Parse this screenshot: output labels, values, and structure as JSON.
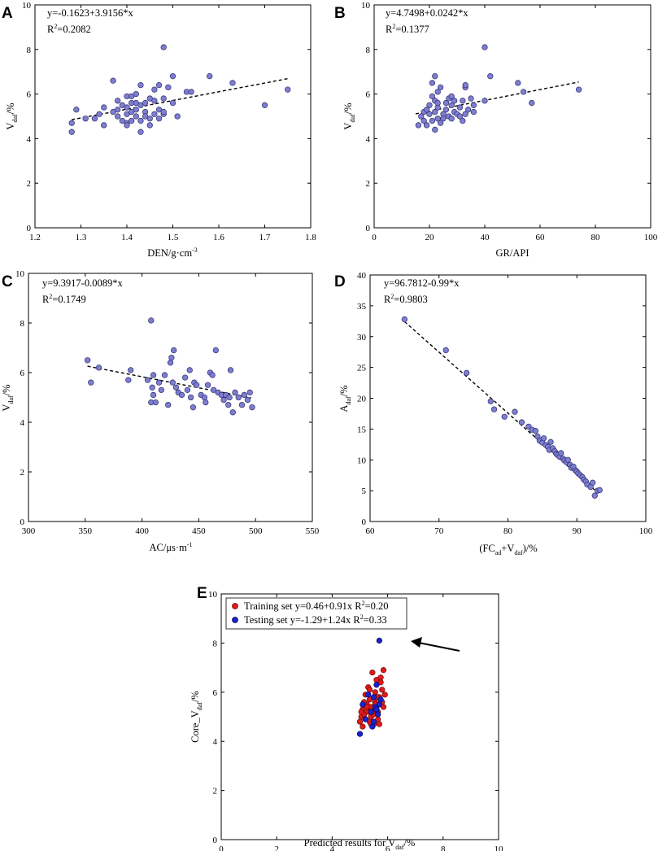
{
  "figure": {
    "colors": {
      "point_fill": "#7e7ed0",
      "point_stroke": "#2e2e6e",
      "training": "#e01b1b",
      "testing": "#1a22c8",
      "trend": "#000000"
    }
  },
  "chart_data": [
    {
      "panel": "A",
      "type": "scatter",
      "xlabel": "DEN/g·cm",
      "xlabel_sup": "-3",
      "ylabel": "V",
      "ylabel_sub": "daf",
      "ylabel_tail": "/%",
      "xlim": [
        1.2,
        1.8
      ],
      "ylim": [
        0,
        10
      ],
      "xticks": [
        "1.2",
        "1.3",
        "1.4",
        "1.5",
        "1.6",
        "1.7",
        "1.8"
      ],
      "yticks": [
        "0",
        "2",
        "4",
        "6",
        "8",
        "10"
      ],
      "equation": "y=-0.1623+3.9156*x",
      "r2_label": "R",
      "r2_sup": "2",
      "r2_value": "=0.2082",
      "trend": [
        [
          1.28,
          4.85
        ],
        [
          1.75,
          6.69
        ]
      ],
      "x": [
        1.28,
        1.28,
        1.29,
        1.31,
        1.33,
        1.34,
        1.35,
        1.35,
        1.37,
        1.37,
        1.38,
        1.38,
        1.38,
        1.39,
        1.39,
        1.4,
        1.4,
        1.4,
        1.4,
        1.4,
        1.41,
        1.41,
        1.41,
        1.41,
        1.42,
        1.42,
        1.42,
        1.42,
        1.43,
        1.43,
        1.43,
        1.43,
        1.44,
        1.44,
        1.44,
        1.45,
        1.45,
        1.45,
        1.46,
        1.46,
        1.46,
        1.47,
        1.47,
        1.47,
        1.48,
        1.48,
        1.48,
        1.48,
        1.49,
        1.5,
        1.5,
        1.51,
        1.53,
        1.54,
        1.58,
        1.63,
        1.7,
        1.75
      ],
      "y": [
        4.3,
        4.7,
        5.3,
        4.9,
        4.9,
        5.1,
        4.6,
        5.4,
        5.2,
        6.6,
        5.0,
        5.3,
        5.7,
        5.5,
        4.8,
        5.1,
        5.4,
        4.7,
        4.6,
        5.9,
        5.2,
        5.6,
        5.9,
        4.8,
        5.0,
        5.6,
        6.0,
        5.3,
        4.3,
        5.5,
        4.8,
        6.4,
        5.2,
        5.6,
        5.0,
        5.8,
        4.6,
        4.9,
        6.2,
        5.1,
        5.7,
        6.4,
        5.3,
        4.9,
        8.1,
        5.8,
        5.1,
        5.2,
        6.3,
        6.8,
        5.6,
        5.0,
        6.1,
        6.1,
        6.8,
        6.5,
        5.5,
        6.2
      ]
    },
    {
      "panel": "B",
      "type": "scatter",
      "xlabel": "GR/API",
      "ylabel": "V",
      "ylabel_sub": "daf",
      "ylabel_tail": "/%",
      "xlim": [
        0,
        100
      ],
      "ylim": [
        0,
        10
      ],
      "xticks": [
        "0",
        "20",
        "40",
        "60",
        "80",
        "100"
      ],
      "yticks": [
        "0",
        "2",
        "4",
        "6",
        "8",
        "10"
      ],
      "equation": "y=4.7498+0.0242*x",
      "r2_label": "R",
      "r2_sup": "2",
      "r2_value": "=0.1377",
      "trend": [
        [
          15,
          5.11
        ],
        [
          74,
          6.54
        ]
      ],
      "x": [
        16,
        17,
        18,
        18,
        19,
        19,
        20,
        20,
        21,
        21,
        21,
        22,
        22,
        22,
        22,
        23,
        23,
        23,
        23,
        24,
        24,
        25,
        25,
        26,
        26,
        27,
        27,
        28,
        28,
        28,
        29,
        29,
        30,
        31,
        31,
        32,
        32,
        33,
        33,
        33,
        34,
        35,
        36,
        36,
        40,
        40,
        42,
        52,
        54,
        57,
        74
      ],
      "y": [
        4.6,
        5.0,
        4.8,
        5.2,
        4.6,
        5.3,
        5.1,
        5.5,
        4.8,
        5.9,
        6.5,
        6.8,
        5.2,
        4.4,
        5.7,
        6.1,
        4.9,
        5.4,
        5.6,
        4.7,
        6.3,
        5.1,
        4.9,
        5.3,
        5.6,
        5.8,
        5.0,
        5.5,
        4.9,
        5.9,
        5.2,
        5.7,
        5.1,
        5.0,
        5.4,
        4.8,
        5.7,
        5.1,
        6.3,
        6.4,
        5.3,
        5.8,
        5.2,
        5.5,
        8.1,
        5.7,
        6.8,
        6.5,
        6.1,
        5.6,
        6.2
      ]
    },
    {
      "panel": "C",
      "type": "scatter",
      "xlabel": "AC/μs·m",
      "xlabel_sup": "-1",
      "ylabel": "V",
      "ylabel_sub": "daf",
      "ylabel_tail": "/%",
      "xlim": [
        300,
        550
      ],
      "ylim": [
        0,
        10
      ],
      "xticks": [
        "300",
        "350",
        "400",
        "450",
        "500",
        "550"
      ],
      "yticks": [
        "0",
        "2",
        "4",
        "6",
        "8",
        "10"
      ],
      "equation": "y=9.3917-0.0089*x",
      "r2_label": "R",
      "r2_sup": "2",
      "r2_value": "=0.1749",
      "trend": [
        [
          352,
          6.26
        ],
        [
          496,
          4.98
        ]
      ],
      "x": [
        352,
        355,
        362,
        388,
        390,
        405,
        408,
        408,
        409,
        410,
        410,
        412,
        415,
        417,
        420,
        423,
        425,
        426,
        427,
        428,
        430,
        432,
        435,
        438,
        440,
        442,
        443,
        445,
        446,
        448,
        452,
        455,
        456,
        458,
        460,
        462,
        463,
        465,
        467,
        470,
        472,
        474,
        476,
        477,
        478,
        480,
        482,
        485,
        488,
        490,
        493,
        495,
        497
      ],
      "y": [
        6.5,
        5.6,
        6.2,
        5.7,
        6.1,
        5.7,
        8.1,
        4.8,
        5.4,
        5.9,
        5.1,
        4.8,
        5.6,
        5.3,
        5.9,
        4.7,
        6.4,
        6.6,
        5.6,
        6.9,
        5.4,
        5.2,
        5.1,
        5.8,
        5.3,
        6.1,
        5.0,
        4.6,
        5.6,
        5.5,
        5.1,
        5.0,
        4.8,
        5.5,
        6.0,
        5.9,
        5.3,
        6.9,
        5.2,
        5.1,
        4.9,
        5.1,
        4.7,
        5.0,
        6.1,
        4.4,
        5.2,
        5.0,
        4.7,
        5.1,
        4.9,
        5.2,
        4.6
      ]
    },
    {
      "panel": "D",
      "type": "scatter",
      "xlabel": "(FC",
      "xlabel_sub": "ad",
      "xlabel_mid": "+V",
      "xlabel_sub2": "daf",
      "xlabel_tail": ")/%",
      "ylabel": "A",
      "ylabel_sub": "daf",
      "ylabel_tail": "/%",
      "xlim": [
        60,
        100
      ],
      "ylim": [
        0,
        40
      ],
      "xticks": [
        "60",
        "70",
        "80",
        "90",
        "100"
      ],
      "yticks": [
        "0",
        "5",
        "10",
        "15",
        "20",
        "25",
        "30",
        "35",
        "40"
      ],
      "equation": "y=96.7812-0.99*x",
      "r2_label": "R",
      "r2_sup": "2",
      "r2_value": "=0.9803",
      "trend": [
        [
          65,
          32.43
        ],
        [
          93,
          4.71
        ]
      ],
      "x": [
        65,
        71,
        74,
        77.5,
        78,
        79.5,
        81,
        82,
        83,
        83.5,
        84,
        84.3,
        84.6,
        85,
        85.2,
        85.5,
        85.8,
        86,
        86.2,
        86.5,
        86.8,
        87,
        87.2,
        87.5,
        87.7,
        88,
        88.2,
        88.5,
        88.7,
        89,
        89.2,
        89.5,
        89.8,
        90,
        90.2,
        90.5,
        90.8,
        91,
        91.3,
        91.5,
        92,
        92.3,
        92.6,
        93,
        93.3
      ],
      "y": [
        32.8,
        27.8,
        24.1,
        19.5,
        18.2,
        17.0,
        17.8,
        16.1,
        15.4,
        14.9,
        14.7,
        13.8,
        13.1,
        12.8,
        13.5,
        12.4,
        12.1,
        11.6,
        12.9,
        11.9,
        11.4,
        11.0,
        10.8,
        10.5,
        11.1,
        10.2,
        9.9,
        9.6,
        10.0,
        9.2,
        8.7,
        8.9,
        8.3,
        8.1,
        7.8,
        7.5,
        7.2,
        6.8,
        6.5,
        6.0,
        5.6,
        6.3,
        4.2,
        5.0,
        5.1
      ]
    },
    {
      "panel": "E",
      "type": "scatter",
      "xlabel": "Predicted results for V",
      "xlabel_sub": "daf",
      "xlabel_tail": "/%",
      "ylabel": "Core_V",
      "ylabel_sub": "daf",
      "ylabel_tail": "/%",
      "xlim": [
        0,
        10
      ],
      "ylim": [
        0,
        10
      ],
      "xticks": [
        "0",
        "2",
        "4",
        "6",
        "8",
        "10"
      ],
      "yticks": [
        "0",
        "2",
        "4",
        "6",
        "8",
        "10"
      ],
      "legend": {
        "position": "top-left",
        "training_label": "Training set y=0.46+0.91x   R",
        "training_sup": "2",
        "training_value": "=0.20",
        "testing_label": "Testing set  y=-1.29+1.24x  R",
        "testing_sup": "2",
        "testing_value": "=0.33"
      },
      "series": [
        {
          "name": "Training set",
          "x": [
            5.0,
            5.05,
            5.1,
            5.1,
            5.15,
            5.2,
            5.2,
            5.25,
            5.3,
            5.3,
            5.35,
            5.35,
            5.4,
            5.4,
            5.45,
            5.5,
            5.5,
            5.55,
            5.55,
            5.6,
            5.6,
            5.65,
            5.7,
            5.7,
            5.75,
            5.8,
            5.8,
            5.85,
            5.9,
            5.15,
            5.45,
            5.65,
            5.25,
            5.75,
            5.05,
            5.35,
            5.55,
            5.85,
            5.4,
            5.6
          ],
          "y": [
            4.8,
            5.0,
            4.6,
            5.3,
            5.1,
            5.9,
            4.9,
            5.5,
            5.2,
            6.2,
            4.8,
            5.7,
            5.0,
            5.4,
            6.8,
            5.1,
            4.7,
            5.6,
            6.0,
            5.3,
            6.5,
            5.2,
            4.7,
            5.8,
            6.4,
            5.6,
            6.1,
            5.4,
            5.9,
            5.6,
            5.2,
            4.9,
            5.4,
            6.6,
            5.2,
            6.1,
            5.5,
            6.9,
            4.7,
            5.8
          ]
        },
        {
          "name": "Testing set",
          "x": [
            5.0,
            5.1,
            5.2,
            5.3,
            5.4,
            5.45,
            5.5,
            5.55,
            5.6,
            5.65,
            5.7,
            5.7,
            5.75,
            5.6,
            5.5
          ],
          "y": [
            4.3,
            5.5,
            4.9,
            5.9,
            5.2,
            4.6,
            5.8,
            5.4,
            5.3,
            5.1,
            5.5,
            8.1,
            5.7,
            6.3,
            4.8
          ]
        }
      ],
      "annotation": "arrow pointing to testing-set outlier"
    }
  ]
}
